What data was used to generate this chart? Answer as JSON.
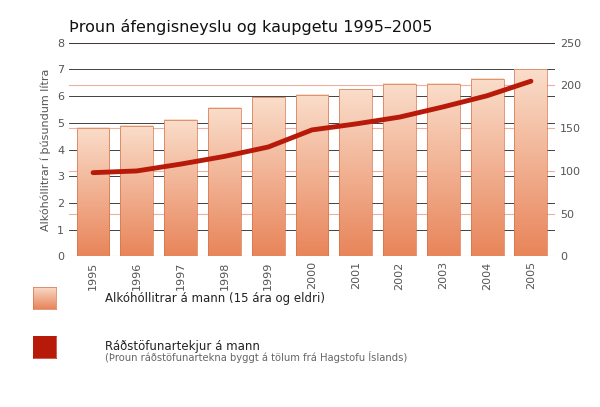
{
  "title": "Þroun áfengisneyslu og kaupgetu 1995–2005",
  "years": [
    1995,
    1996,
    1997,
    1998,
    1999,
    2000,
    2001,
    2002,
    2003,
    2004,
    2005
  ],
  "bar_values": [
    4.8,
    4.9,
    5.1,
    5.55,
    5.95,
    6.05,
    6.25,
    6.45,
    6.45,
    6.65,
    7.0
  ],
  "line_values": [
    98,
    100,
    108,
    117,
    128,
    148,
    155,
    163,
    175,
    188,
    205
  ],
  "bar_color_top": "#E8855A",
  "bar_color_bottom": "#FADDCA",
  "bar_edge_color": "#D4724A",
  "line_color": "#B81A0A",
  "ylabel_left": "Alkóhóllitrar í þúsundum lítra",
  "ylim_left": [
    0,
    8
  ],
  "ylim_right": [
    0,
    250
  ],
  "yticks_left": [
    0,
    1,
    2,
    3,
    4,
    5,
    6,
    7,
    8
  ],
  "yticks_right": [
    0,
    50,
    100,
    150,
    200,
    250
  ],
  "legend_bar_label": "Alkóhóllitrar á mann (15 ára og eldri)",
  "legend_line_label": "Ráðstöfunartekjur á mann",
  "legend_line_sublabel": "(Þroun ráðstöfunartekna byggt á tölum frá Hagstofu Íslands)",
  "bg_color": "#FFFFFF",
  "grid_dark_color": "#222222",
  "grid_light_color": "#E8A898",
  "title_fontsize": 11.5,
  "axis_fontsize": 8,
  "tick_fontsize": 8
}
